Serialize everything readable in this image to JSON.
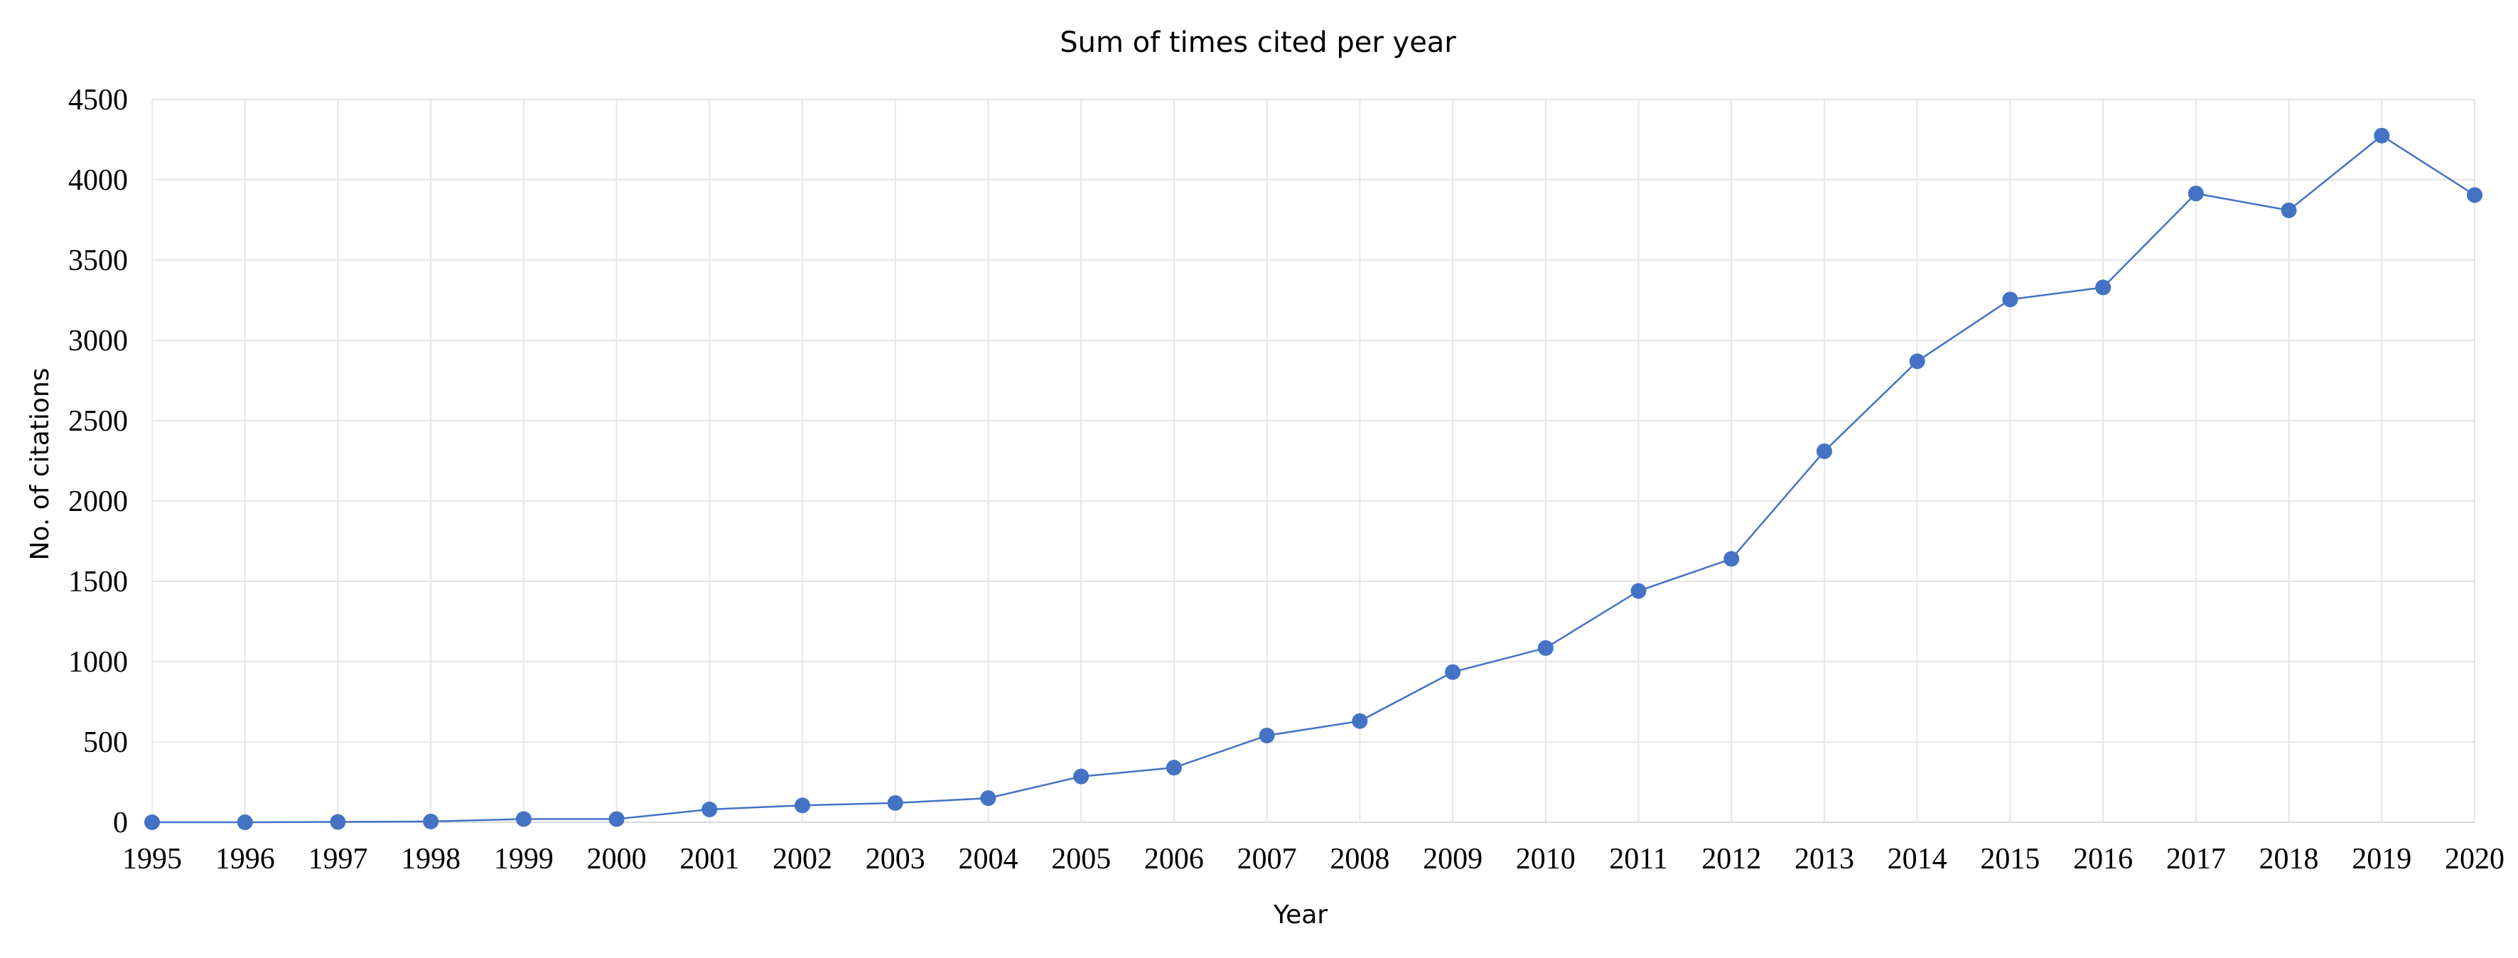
{
  "chart_data": {
    "type": "line",
    "title": "Sum of times cited per year",
    "xlabel": "Year",
    "ylabel": "No. of citations",
    "x": [
      1995,
      1996,
      1997,
      1998,
      1999,
      2000,
      2001,
      2002,
      2003,
      2004,
      2005,
      2006,
      2007,
      2008,
      2009,
      2010,
      2011,
      2012,
      2013,
      2014,
      2015,
      2016,
      2017,
      2018,
      2019,
      2020
    ],
    "x_ticks": [
      "1995",
      "1996",
      "1997",
      "1998",
      "1999",
      "2000",
      "2001",
      "2002",
      "2003",
      "2004",
      "2005",
      "2006",
      "2007",
      "2008",
      "2009",
      "2010",
      "2011",
      "2012",
      "2013",
      "2014",
      "2015",
      "2016",
      "2017",
      "2018",
      "2019",
      "2020"
    ],
    "series": [
      {
        "values": [
          0,
          0,
          2,
          5,
          20,
          20,
          80,
          105,
          120,
          150,
          285,
          340,
          540,
          630,
          935,
          1085,
          1440,
          1640,
          2310,
          2870,
          3255,
          3330,
          3915,
          3810,
          4275,
          3905
        ],
        "color": "#4472c4"
      }
    ],
    "ylim": [
      0,
      4500
    ],
    "y_ticks": [
      "0",
      "500",
      "1000",
      "1500",
      "2000",
      "2500",
      "3000",
      "3500",
      "4000",
      "4500"
    ],
    "grid": true,
    "legend": "none"
  }
}
